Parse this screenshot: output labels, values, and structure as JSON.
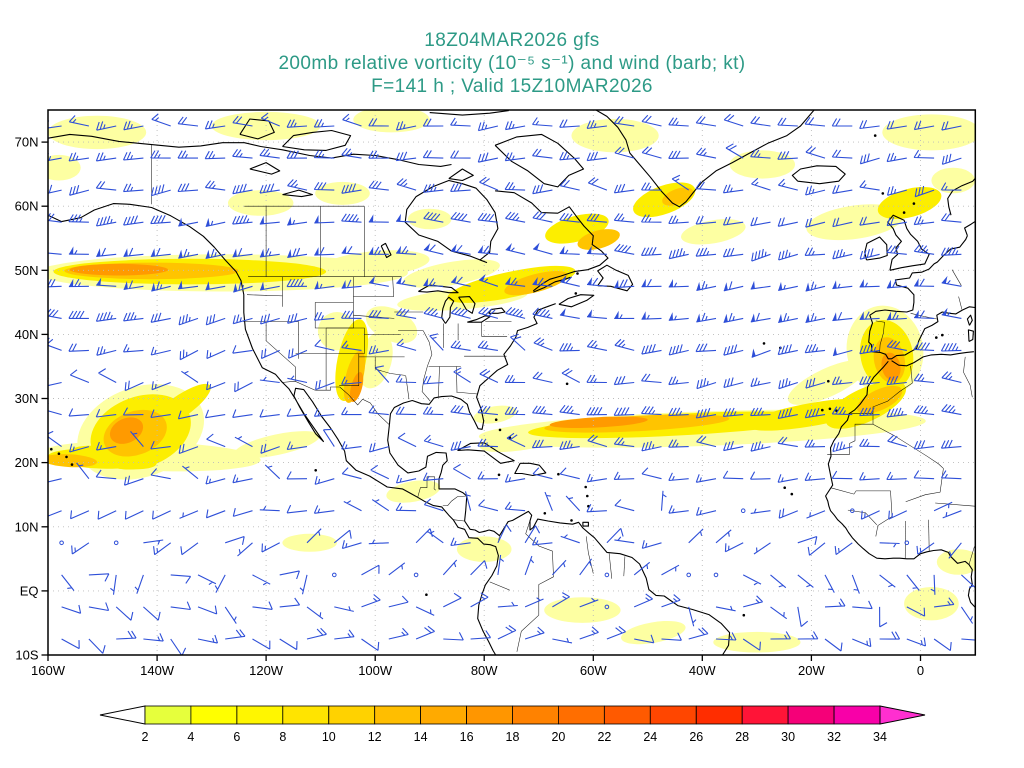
{
  "title": {
    "line1": "18Z04MAR2026 gfs",
    "line2": "200mb relative vorticity (10⁻⁵ s⁻¹) and wind (barb; kt)",
    "line3": "F=141 h ; Valid 15Z10MAR2026"
  },
  "axes": {
    "lat_labels": [
      "70N",
      "60N",
      "50N",
      "40N",
      "30N",
      "20N",
      "10N",
      "EQ",
      "10S"
    ],
    "lat_values": [
      70,
      60,
      50,
      40,
      30,
      20,
      10,
      0,
      -10
    ],
    "lon_labels": [
      "160W",
      "140W",
      "120W",
      "100W",
      "80W",
      "60W",
      "40W",
      "20W",
      "0"
    ],
    "lon_values": [
      -160,
      -140,
      -120,
      -100,
      -80,
      -60,
      -40,
      -20,
      0
    ],
    "lat_range": [
      -10,
      75
    ],
    "lon_range": [
      -160,
      10
    ],
    "grid_lat_step": 10,
    "grid_lon_step": 20
  },
  "colorbar": {
    "tick_labels": [
      "2",
      "4",
      "6",
      "8",
      "10",
      "12",
      "14",
      "16",
      "18",
      "20",
      "22",
      "24",
      "26",
      "28",
      "30",
      "32",
      "34"
    ],
    "segment_colors": [
      "#e6ff3c",
      "#ffff00",
      "#fff600",
      "#ffe400",
      "#ffd200",
      "#ffbe00",
      "#ffaa00",
      "#ff9600",
      "#ff8200",
      "#ff6e00",
      "#ff5a00",
      "#ff4600",
      "#ff2d00",
      "#ff1437",
      "#f50078",
      "#f800a8"
    ],
    "below_min_color": "#ffffff",
    "above_max_color": "#ff2fd0"
  },
  "style_colors": {
    "title_text": "#2d9a86",
    "wind_barb": "#2e4fd8",
    "grid_dots": "#bbbbbb",
    "coastline": "#000000",
    "shading_levels": [
      "#fdffa2",
      "#fcee00",
      "#ffc400",
      "#ff9a00",
      "#ff6a00"
    ]
  },
  "map_content": {
    "model": "gfs",
    "init_time": "18Z04MAR2026",
    "field": "200mb relative vorticity",
    "field_units": "10⁻⁵ s⁻¹",
    "wind_display": "barb",
    "wind_units": "kt",
    "forecast_hour": "F=141 h",
    "valid_time": "15Z10MAR2026"
  }
}
